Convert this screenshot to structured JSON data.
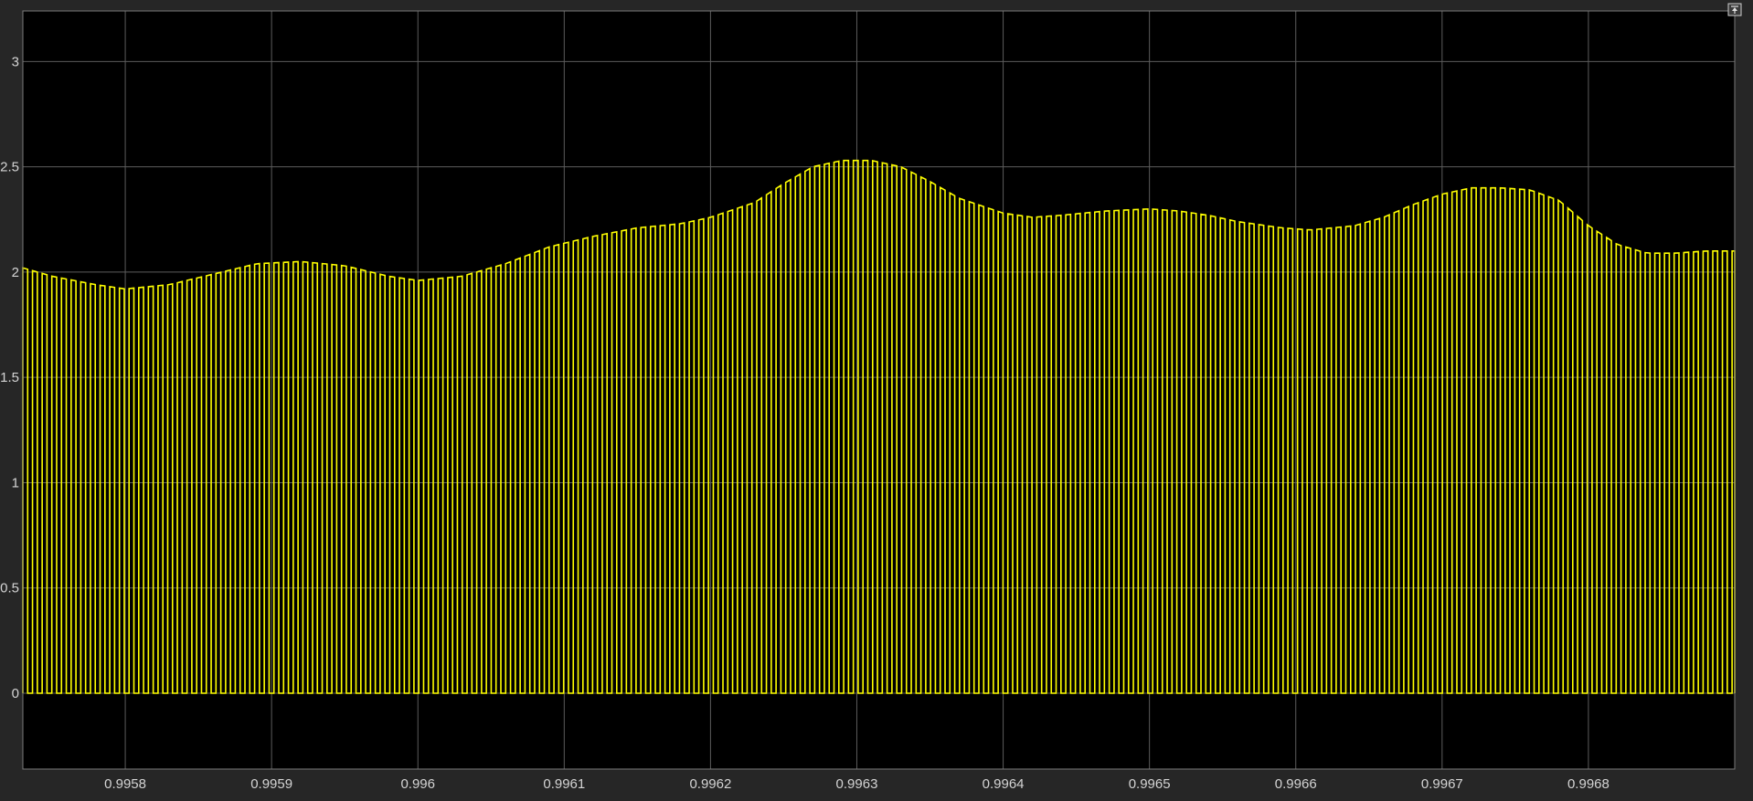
{
  "chart_data": {
    "type": "line",
    "title": "",
    "xlabel": "",
    "ylabel": "",
    "xlim": [
      0.99573,
      0.9969
    ],
    "ylim": [
      -0.36,
      3.24
    ],
    "grid": true,
    "background_color": "#000000",
    "frame_color": "#262626",
    "grid_color": "#5c5c5c",
    "tick_color": "#d4d4d4",
    "xticks": [
      "0.9958",
      "0.9959",
      "0.996",
      "0.9961",
      "0.9962",
      "0.9963",
      "0.9964",
      "0.9965",
      "0.9966",
      "0.9967",
      "0.9968"
    ],
    "xtick_values": [
      0.9958,
      0.9959,
      0.996,
      0.9961,
      0.9962,
      0.9963,
      0.9964,
      0.9965,
      0.9966,
      0.9967,
      0.9968
    ],
    "yticks": [
      "0",
      "0.5",
      "1",
      "1.5",
      "2",
      "2.5",
      "3"
    ],
    "ytick_values": [
      0,
      0.5,
      1,
      1.5,
      2,
      2.5,
      3
    ],
    "series": [
      {
        "color": "#ffff00",
        "style": "pulse",
        "low_value": 0,
        "pulse_period": 6.6e-06,
        "duty_cycle": 0.5,
        "first_pulse_start": 0.99573,
        "envelope": {
          "x": [
            0.99573,
            0.99575,
            0.99578,
            0.9958,
            0.99583,
            0.99586,
            0.99589,
            0.99592,
            0.99595,
            0.99598,
            0.996,
            0.99603,
            0.99606,
            0.99609,
            0.99612,
            0.99615,
            0.99618,
            0.9962,
            0.99623,
            0.99625,
            0.99627,
            0.99629,
            0.99631,
            0.99633,
            0.99635,
            0.99637,
            0.9964,
            0.99642,
            0.99644,
            0.99647,
            0.9965,
            0.99652,
            0.99654,
            0.99656,
            0.99659,
            0.99661,
            0.99664,
            0.99666,
            0.99668,
            0.9967,
            0.99672,
            0.99674,
            0.99676,
            0.99678,
            0.9968,
            0.99682,
            0.99684,
            0.99686,
            0.99688,
            0.9969
          ],
          "y": [
            2.02,
            1.98,
            1.94,
            1.92,
            1.94,
            1.99,
            2.04,
            2.05,
            2.03,
            1.98,
            1.96,
            1.98,
            2.04,
            2.12,
            2.17,
            2.21,
            2.23,
            2.26,
            2.33,
            2.42,
            2.5,
            2.53,
            2.53,
            2.5,
            2.43,
            2.35,
            2.28,
            2.26,
            2.27,
            2.29,
            2.3,
            2.29,
            2.27,
            2.24,
            2.21,
            2.2,
            2.22,
            2.26,
            2.32,
            2.37,
            2.4,
            2.4,
            2.39,
            2.34,
            2.22,
            2.13,
            2.09,
            2.09,
            2.1,
            2.1
          ]
        }
      }
    ]
  },
  "toolbar": {
    "autoscale_icon": "expand-axes-icon"
  }
}
